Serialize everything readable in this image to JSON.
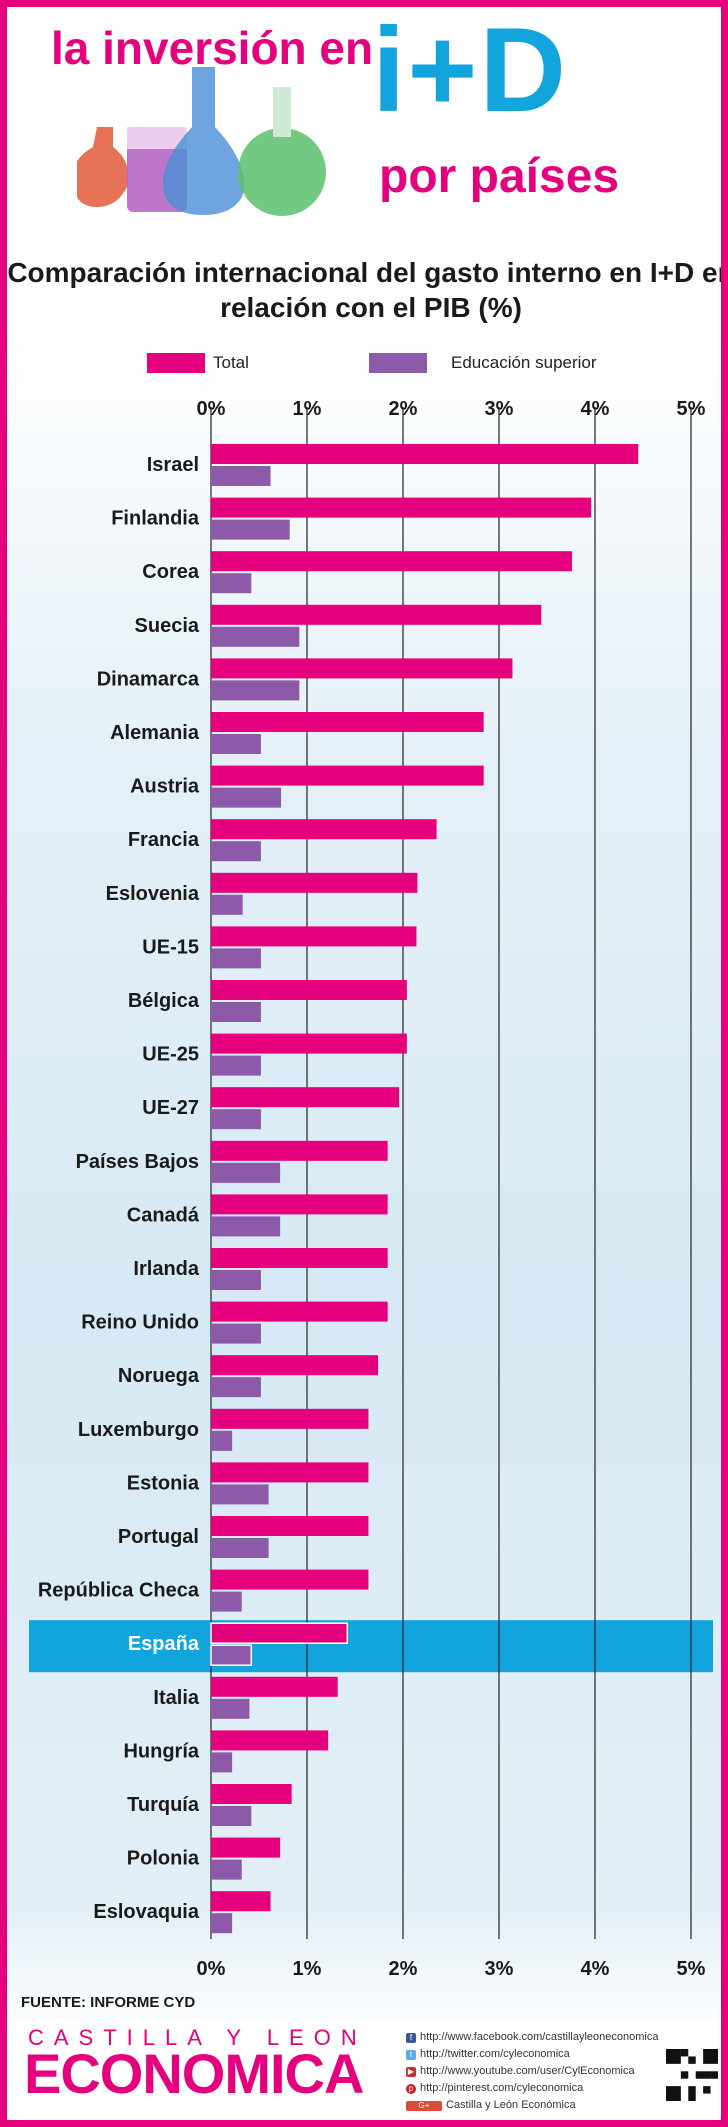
{
  "header": {
    "line1": "la inversión en",
    "line2": "i+D",
    "line3": "por países"
  },
  "colors": {
    "accent": "#e5007d",
    "blue": "#12a4dc",
    "total": "#e5007d",
    "higher_ed": "#8c5aa8",
    "highlight": "#12a4dc"
  },
  "chart_data": {
    "type": "bar",
    "orientation": "horizontal",
    "title": "Comparación internacional del gasto interno en I+D en relación con el PIB (%)",
    "categories": [
      "Israel",
      "Finlandia",
      "Corea",
      "Suecia",
      "Dinamarca",
      "Alemania",
      "Austria",
      "Francia",
      "Eslovenia",
      "UE-15",
      "Bélgica",
      "UE-25",
      "UE-27",
      "Países Bajos",
      "Canadá",
      "Irlanda",
      "Reino Unido",
      "Noruega",
      "Luxemburgo",
      "Estonia",
      "Portugal",
      "República Checa",
      "España",
      "Italia",
      "Hungría",
      "Turquía",
      "Polonia",
      "Eslovaquia"
    ],
    "series": [
      {
        "name": "Total",
        "values": [
          4.45,
          3.96,
          3.76,
          3.44,
          3.14,
          2.84,
          2.84,
          2.35,
          2.15,
          2.14,
          2.04,
          2.04,
          1.96,
          1.84,
          1.84,
          1.84,
          1.84,
          1.74,
          1.64,
          1.64,
          1.64,
          1.64,
          1.42,
          1.32,
          1.22,
          0.84,
          0.72,
          0.62
        ]
      },
      {
        "name": "Educación superior",
        "values": [
          0.62,
          0.82,
          0.42,
          0.92,
          0.92,
          0.52,
          0.73,
          0.52,
          0.33,
          0.52,
          0.52,
          0.52,
          0.52,
          0.72,
          0.72,
          0.52,
          0.52,
          0.52,
          0.22,
          0.6,
          0.6,
          0.32,
          0.42,
          0.4,
          0.22,
          0.42,
          0.32,
          0.22
        ]
      }
    ],
    "highlight": "España",
    "tick_labels": [
      "0%",
      "1%",
      "2%",
      "3%",
      "4%",
      "5%"
    ],
    "xlim": [
      0,
      5
    ],
    "grid": true,
    "legend_position": "top"
  },
  "source": "FUENTE: INFORME CYD",
  "footer": {
    "brand_top": "CASTILLA Y LEON",
    "brand_main": "ECONOMICA",
    "links": [
      {
        "icon": "facebook-icon",
        "text": "http://www.facebook.com/castillayleoneconomica"
      },
      {
        "icon": "twitter-icon",
        "text": "http://twitter.com/cyleconomica"
      },
      {
        "icon": "youtube-icon",
        "text": "http://www.youtube.com/user/CylEconomica"
      },
      {
        "icon": "pinterest-icon",
        "text": "http://pinterest.com/cyleconomica"
      },
      {
        "icon": "google-plus-icon",
        "text": "Castilla y León Económica"
      }
    ]
  }
}
